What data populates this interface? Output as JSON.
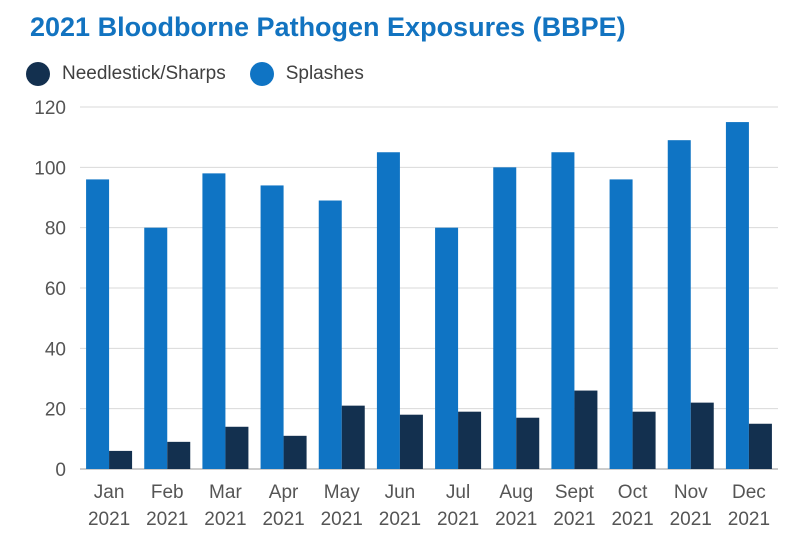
{
  "chart_data": {
    "type": "bar",
    "title": "2021 Bloodborne Pathogen Exposures (BBPE)",
    "categories": [
      [
        "Jan",
        "2021"
      ],
      [
        "Feb",
        "2021"
      ],
      [
        "Mar",
        "2021"
      ],
      [
        "Apr",
        "2021"
      ],
      [
        "May",
        "2021"
      ],
      [
        "Jun",
        "2021"
      ],
      [
        "Jul",
        "2021"
      ],
      [
        "Aug",
        "2021"
      ],
      [
        "Sept",
        "2021"
      ],
      [
        "Oct",
        "2021"
      ],
      [
        "Nov",
        "2021"
      ],
      [
        "Dec",
        "2021"
      ]
    ],
    "series": [
      {
        "name": "Splashes",
        "color": "#0f74c4",
        "values": [
          96,
          80,
          98,
          94,
          89,
          105,
          80,
          100,
          105,
          96,
          109,
          115
        ]
      },
      {
        "name": "Needlestick/Sharps",
        "color": "#13304f",
        "values": [
          6,
          9,
          14,
          11,
          21,
          18,
          19,
          17,
          26,
          19,
          22,
          15
        ]
      }
    ],
    "legend": [
      {
        "name": "Needlestick/Sharps",
        "color": "#13304f"
      },
      {
        "name": "Splashes",
        "color": "#0f74c4"
      }
    ],
    "legend_position": "top-left",
    "ylim": [
      0,
      120
    ],
    "yticks": [
      0,
      20,
      40,
      60,
      80,
      100,
      120
    ],
    "grid": true,
    "xlabel": "",
    "ylabel": ""
  }
}
